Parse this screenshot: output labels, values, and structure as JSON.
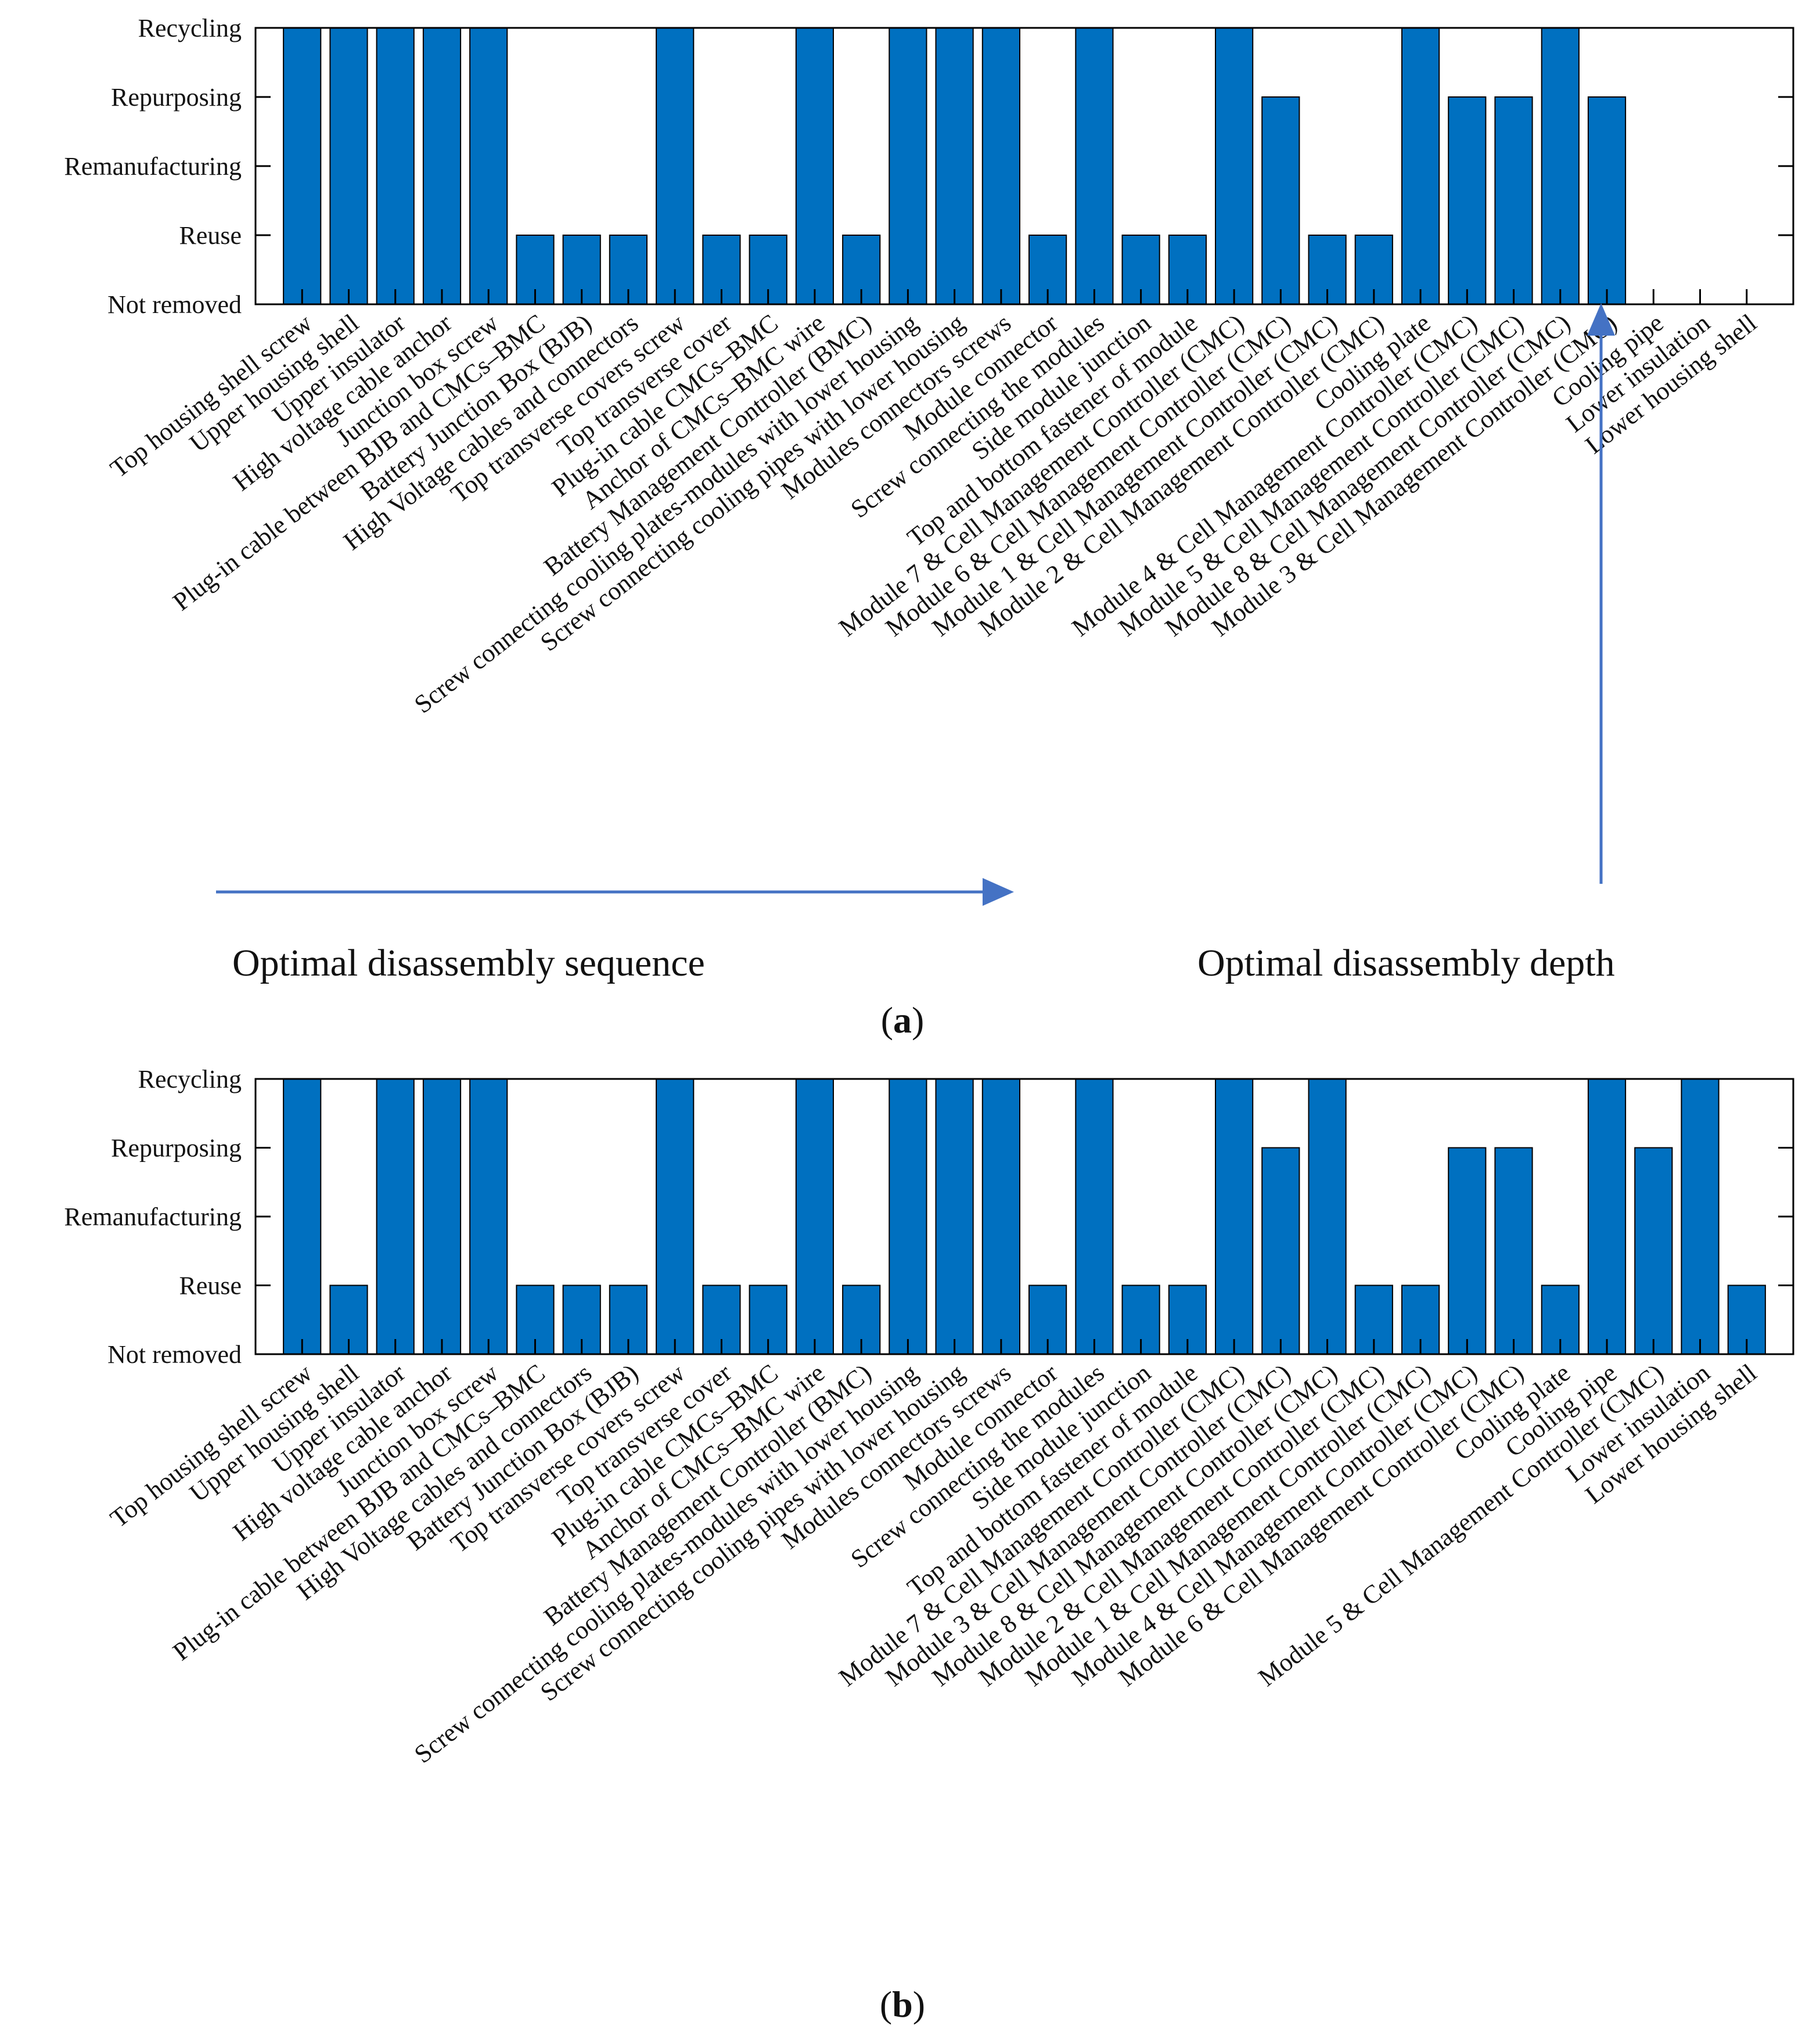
{
  "chart_data": [
    {
      "type": "bar",
      "panel_label": "a",
      "y_levels": [
        "Not removed",
        "Reuse",
        "Remanufacturing",
        "Repurposing",
        "Recycling"
      ],
      "ylim": [
        0,
        4
      ],
      "categories": [
        "Top housing shell screw",
        "Upper housing shell",
        "Upper insulator",
        "High voltage cable anchor",
        "Junction box screw",
        "Plug-in cable between BJB and CMCs–BMC",
        "Battery Junction Box (BJB)",
        "High Voltage cables and connectors",
        "Top transverse covers screw",
        "Top transverse cover",
        "Plug-in cable CMCs–BMC",
        "Anchor of CMCs–BMC wire",
        "Battery Management Controller (BMC)",
        "Screw connecting cooling plates-modules with lower housing",
        "Screw connecting cooling pipes with lower housing",
        "Modules connectors screws",
        "Module connector",
        "Screw connecting the modules",
        "Side module junction",
        "Top and bottom fastener of module",
        "Module 7 & Cell Management Controller (CMC)",
        "Module 6 & Cell Management Controller (CMC)",
        "Module 1 & Cell Management Controller (CMC)",
        "Module 2 & Cell Management Controller (CMC)",
        "Cooling plate",
        "Module 4 & Cell Management Controller (CMC)",
        "Module 5 & Cell Management Controller (CMC)",
        "Module 8 & Cell Management Controller (CMC)",
        "Module 3 & Cell Management Controller (CMC)",
        "Cooling pipe",
        "Lower insulation",
        "Lower housing shell"
      ],
      "values": [
        4,
        4,
        4,
        4,
        4,
        1,
        1,
        1,
        4,
        1,
        1,
        4,
        1,
        4,
        4,
        4,
        1,
        4,
        1,
        1,
        4,
        3,
        1,
        1,
        4,
        3,
        3,
        4,
        3,
        0,
        0,
        0
      ],
      "annotations": {
        "sequence": "Optimal disassembly sequence",
        "depth": "Optimal disassembly depth"
      }
    },
    {
      "type": "bar",
      "panel_label": "b",
      "y_levels": [
        "Not removed",
        "Reuse",
        "Remanufacturing",
        "Repurposing",
        "Recycling"
      ],
      "ylim": [
        0,
        4
      ],
      "categories": [
        "Top housing shell screw",
        "Upper housing shell",
        "Upper insulator",
        "High voltage cable anchor",
        "Junction box screw",
        "Plug-in cable between BJB and CMCs–BMC",
        "High Voltage cables and connectors",
        "Battery Junction Box (BJB)",
        "Top transverse covers screw",
        "Top transverse cover",
        "Plug-in cable CMCs–BMC",
        "Anchor of CMCs–BMC wire",
        "Battery Management Controller (BMC)",
        "Screw connecting cooling plates-modules with lower housing",
        "Screw connecting cooling pipes with lower housing",
        "Modules connectors screws",
        "Module connector",
        "Screw connecting the modules",
        "Side module junction",
        "Top and bottom fastener of module",
        "Module 7 & Cell Management Controller (CMC)",
        "Module 3 & Cell Management Controller (CMC)",
        "Module 8 & Cell Management Controller (CMC)",
        "Module 2 & Cell Management Controller (CMC)",
        "Module 1 & Cell Management Controller (CMC)",
        "Module 4 & Cell Management Controller (CMC)",
        "Module 6 & Cell Management Controller (CMC)",
        "Cooling plate",
        "Cooling pipe",
        "Module 5 & Cell Management Controller (CMC)",
        "Lower insulation",
        "Lower housing shell"
      ],
      "values": [
        4,
        1,
        4,
        4,
        4,
        1,
        1,
        1,
        4,
        1,
        1,
        4,
        1,
        4,
        4,
        4,
        1,
        4,
        1,
        1,
        4,
        3,
        4,
        1,
        1,
        3,
        3,
        1,
        4,
        3,
        4,
        1
      ]
    }
  ],
  "colors": {
    "bar": "#0070c0",
    "arrow": "#4472c4"
  }
}
